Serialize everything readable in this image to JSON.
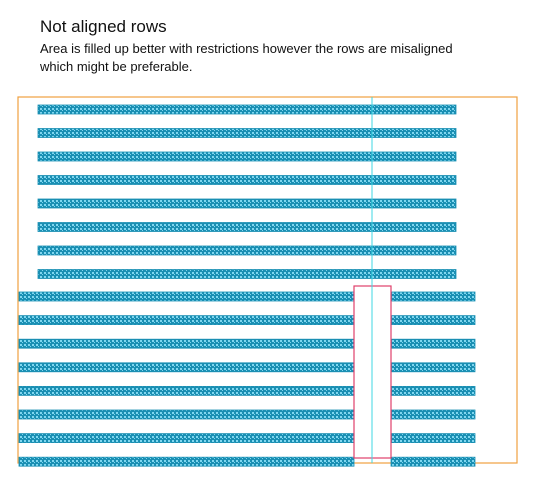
{
  "diagram": {
    "title": "Not aligned rows",
    "description_line1": "Area is  filled up better with restrictions however the rows are misaligned",
    "description_line2": "which might be preferable.",
    "colors": {
      "boundary": "#f0a040",
      "centerline": "#3fd7e3",
      "restriction": "#e0406a",
      "row_fill": "#1a8fb3",
      "row_pattern": "#7fd6ef"
    },
    "upper_block": {
      "row_count": 8,
      "alignment": "centered"
    },
    "lower_block": {
      "row_count": 8,
      "alignment": "full width, split by restriction zone"
    }
  }
}
